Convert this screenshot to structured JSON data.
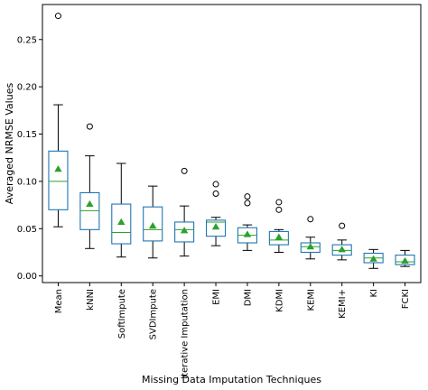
{
  "chart_data": {
    "type": "box",
    "title": "",
    "xlabel": "Missing Data Imputation Techniques",
    "ylabel": "Averaged NRMSE Values",
    "ylim": [
      -0.007,
      0.287
    ],
    "yticks": [
      0.0,
      0.05,
      0.1,
      0.15,
      0.2,
      0.25
    ],
    "ytick_labels": [
      "0.00",
      "0.05",
      "0.10",
      "0.15",
      "0.20",
      "0.25"
    ],
    "grid": false,
    "legend": "none",
    "colors": {
      "box": "#1f77b4",
      "median": "#2ca02c",
      "mean_marker": "#2ca02c",
      "whisker": "#000000",
      "flier": "#000000"
    },
    "categories": [
      "Mean",
      "kNNI",
      "SoftImpute",
      "SVDImpute",
      "Iterative Imputation",
      "EMI",
      "DMI",
      "KDMI",
      "KEMI",
      "KEMI+",
      "KI",
      "FCKI"
    ],
    "boxes": [
      {
        "label": "Mean",
        "whislo": 0.052,
        "q1": 0.07,
        "med": 0.1,
        "q3": 0.132,
        "whishi": 0.181,
        "mean": 0.113,
        "fliers": [
          0.275
        ]
      },
      {
        "label": "kNNI",
        "whislo": 0.029,
        "q1": 0.049,
        "med": 0.069,
        "q3": 0.088,
        "whishi": 0.127,
        "mean": 0.076,
        "fliers": [
          0.158
        ]
      },
      {
        "label": "SoftImpute",
        "whislo": 0.02,
        "q1": 0.034,
        "med": 0.046,
        "q3": 0.076,
        "whishi": 0.119,
        "mean": 0.057,
        "fliers": []
      },
      {
        "label": "SVDImpute",
        "whislo": 0.019,
        "q1": 0.037,
        "med": 0.049,
        "q3": 0.073,
        "whishi": 0.095,
        "mean": 0.053,
        "fliers": []
      },
      {
        "label": "Iterative Imputation",
        "whislo": 0.021,
        "q1": 0.036,
        "med": 0.049,
        "q3": 0.057,
        "whishi": 0.074,
        "mean": 0.048,
        "fliers": [
          0.111
        ]
      },
      {
        "label": "EMI",
        "whislo": 0.032,
        "q1": 0.042,
        "med": 0.057,
        "q3": 0.059,
        "whishi": 0.062,
        "mean": 0.052,
        "fliers": [
          0.097,
          0.087
        ]
      },
      {
        "label": "DMI",
        "whislo": 0.027,
        "q1": 0.035,
        "med": 0.043,
        "q3": 0.051,
        "whishi": 0.054,
        "mean": 0.044,
        "fliers": [
          0.084,
          0.077
        ]
      },
      {
        "label": "KDMI",
        "whislo": 0.025,
        "q1": 0.033,
        "med": 0.038,
        "q3": 0.047,
        "whishi": 0.049,
        "mean": 0.041,
        "fliers": [
          0.078,
          0.07
        ]
      },
      {
        "label": "KEMI",
        "whislo": 0.018,
        "q1": 0.025,
        "med": 0.031,
        "q3": 0.035,
        "whishi": 0.041,
        "mean": 0.031,
        "fliers": [
          0.06
        ]
      },
      {
        "label": "KEMI+",
        "whislo": 0.017,
        "q1": 0.022,
        "med": 0.027,
        "q3": 0.033,
        "whishi": 0.038,
        "mean": 0.028,
        "fliers": [
          0.053
        ]
      },
      {
        "label": "KI",
        "whislo": 0.008,
        "q1": 0.014,
        "med": 0.019,
        "q3": 0.024,
        "whishi": 0.028,
        "mean": 0.018,
        "fliers": []
      },
      {
        "label": "FCKI",
        "whislo": 0.01,
        "q1": 0.012,
        "med": 0.015,
        "q3": 0.022,
        "whishi": 0.027,
        "mean": 0.016,
        "fliers": []
      }
    ]
  }
}
